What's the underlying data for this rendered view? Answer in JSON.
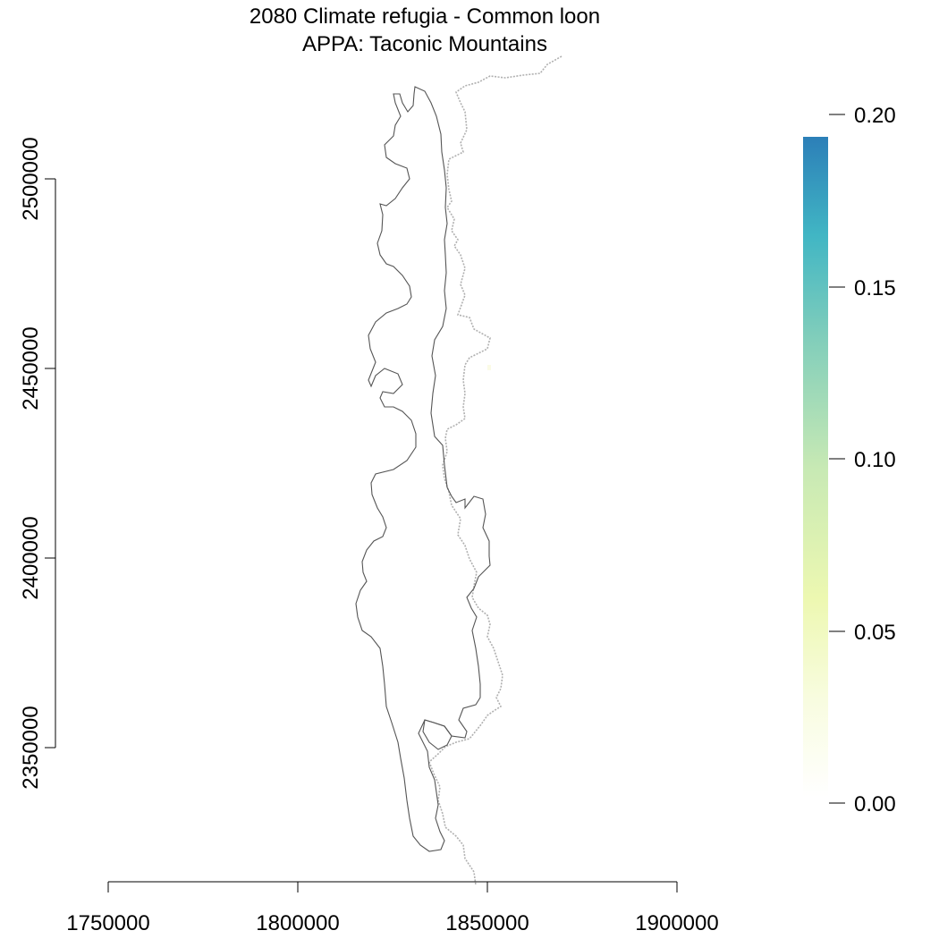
{
  "title": {
    "line1": "2080 Climate refugia - Common loon",
    "line2": "APPA: Taconic Mountains"
  },
  "x_axis": {
    "ticks": [
      {
        "value": 1750000,
        "label": "1750000"
      },
      {
        "value": 1800000,
        "label": "1800000"
      },
      {
        "value": 1850000,
        "label": "1850000"
      },
      {
        "value": 1900000,
        "label": "1900000"
      }
    ]
  },
  "y_axis": {
    "ticks": [
      {
        "value": 2350000,
        "label": "2350000"
      },
      {
        "value": 2400000,
        "label": "2400000"
      },
      {
        "value": 2450000,
        "label": "2450000"
      },
      {
        "value": 2500000,
        "label": "2500000"
      }
    ]
  },
  "legend": {
    "ticks": [
      {
        "value": 0.0,
        "label": "0.00"
      },
      {
        "value": 0.05,
        "label": "0.05"
      },
      {
        "value": 0.1,
        "label": "0.10"
      },
      {
        "value": 0.15,
        "label": "0.15"
      },
      {
        "value": 0.2,
        "label": "0.20"
      }
    ],
    "range": [
      0.0,
      0.2
    ],
    "colors": [
      "#ffffff",
      "#f7fcd8",
      "#edf8b1",
      "#c7e9b4",
      "#7fcdbb",
      "#41b6c4",
      "#2c7fb8"
    ]
  },
  "colors": {
    "boundary": "#555555",
    "state_line": "#b0b0b0",
    "refugia_cell": "#fbfbe6"
  }
}
